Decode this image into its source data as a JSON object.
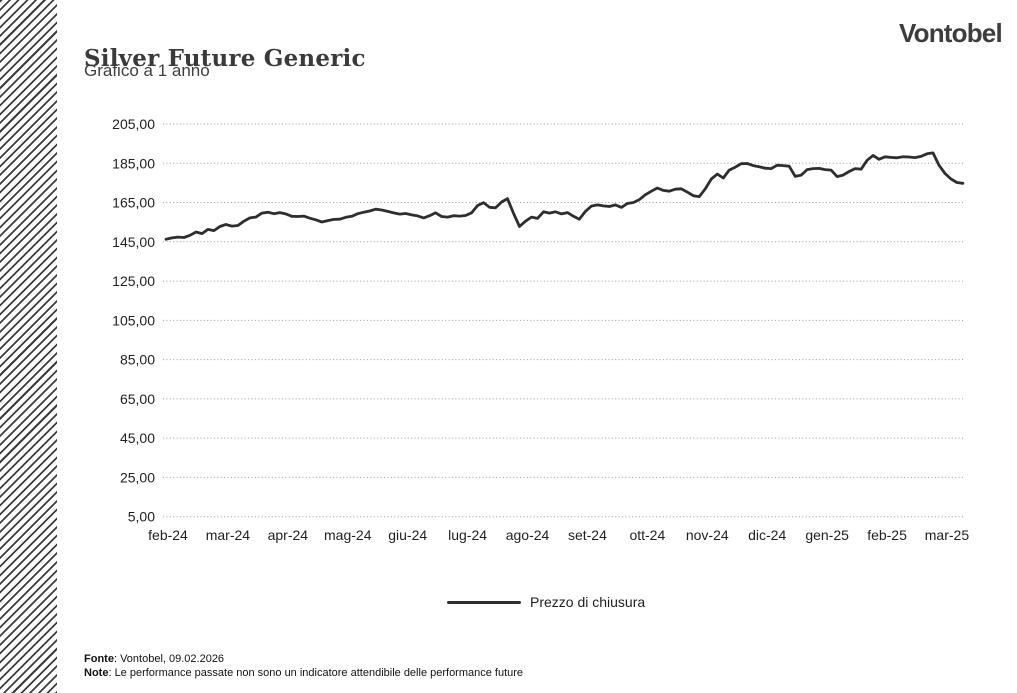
{
  "header": {
    "title": "Silver Future Generic",
    "subtitle": "Grafico a 1 anno",
    "logo": "Vontobel"
  },
  "chart_data": {
    "type": "line",
    "title": "Silver Future Generic",
    "subtitle": "Grafico a 1 anno",
    "grid": "horizontal-dotted",
    "legend": {
      "position": "bottom-center",
      "entries": [
        {
          "label": "Prezzo di chiusura",
          "color": "#2e2e2e"
        }
      ]
    },
    "ylim": [
      5,
      205
    ],
    "y_ticks": [
      {
        "v": 205,
        "label": "205,00"
      },
      {
        "v": 185,
        "label": "185,00"
      },
      {
        "v": 165,
        "label": "165,00"
      },
      {
        "v": 145,
        "label": "145,00"
      },
      {
        "v": 125,
        "label": "125,00"
      },
      {
        "v": 105,
        "label": "105,00"
      },
      {
        "v": 85,
        "label": "85,00"
      },
      {
        "v": 65,
        "label": "65,00"
      },
      {
        "v": 45,
        "label": "45,00"
      },
      {
        "v": 25,
        "label": "25,00"
      },
      {
        "v": 5,
        "label": "5,00"
      }
    ],
    "x_tick_labels": [
      "feb-24",
      "mar-24",
      "apr-24",
      "mag-24",
      "giu-24",
      "lug-24",
      "ago-24",
      "set-24",
      "ott-24",
      "nov-24",
      "dic-24",
      "gen-25",
      "feb-25",
      "mar-25"
    ],
    "series": [
      {
        "name": "Prezzo di chiusura",
        "color": "#2e2e2e",
        "x_start_months": 0,
        "x_step_months": 0.1,
        "values": [
          146.3,
          147.0,
          147.4,
          147.2,
          148.3,
          150.0,
          149.2,
          151.3,
          150.7,
          152.8,
          153.8,
          153.0,
          153.3,
          155.5,
          157.2,
          157.6,
          159.6,
          160.1,
          159.3,
          159.9,
          159.2,
          158.0,
          157.9,
          158.1,
          157.0,
          156.2,
          155.1,
          155.8,
          156.4,
          156.5,
          157.5,
          158.0,
          159.3,
          160.1,
          160.7,
          161.6,
          161.2,
          160.5,
          159.7,
          159.1,
          159.4,
          158.7,
          158.2,
          157.2,
          158.3,
          159.8,
          157.9,
          157.6,
          158.3,
          158.1,
          158.4,
          159.8,
          163.5,
          164.9,
          162.6,
          162.3,
          165.3,
          167.0,
          159.5,
          152.8,
          155.5,
          157.6,
          156.9,
          160.3,
          159.6,
          160.3,
          159.2,
          159.9,
          158.0,
          156.5,
          160.5,
          163.2,
          163.8,
          163.3,
          163.0,
          163.8,
          162.5,
          164.5,
          165.0,
          166.5,
          169.0,
          170.8,
          172.4,
          171.2,
          170.8,
          171.8,
          172.0,
          170.3,
          168.5,
          168.0,
          172.0,
          177.0,
          179.5,
          177.5,
          181.5,
          183.0,
          184.8,
          184.9,
          183.8,
          183.2,
          182.5,
          182.3,
          184.0,
          183.8,
          183.5,
          178.3,
          179.0,
          181.8,
          182.3,
          182.4,
          181.8,
          181.5,
          178.2,
          179.0,
          180.8,
          182.3,
          182.0,
          186.5,
          189.0,
          187.0,
          188.3,
          188.0,
          187.8,
          188.3,
          188.2,
          187.9,
          188.5,
          189.8,
          190.3,
          184.0,
          179.8,
          177.0,
          175.2,
          174.8
        ]
      }
    ]
  },
  "footer": {
    "fonte_label": "Fonte",
    "fonte_rest": ": Vontobel, 09.02.2026",
    "note_label": "Note",
    "note_rest": ": Le performance passate non sono un indicatore attendibile delle performance future"
  },
  "colors": {
    "line": "#2e2e2e",
    "grid": "#9e9e9e",
    "text": "#222222",
    "stripes": "#3c3c3c"
  }
}
